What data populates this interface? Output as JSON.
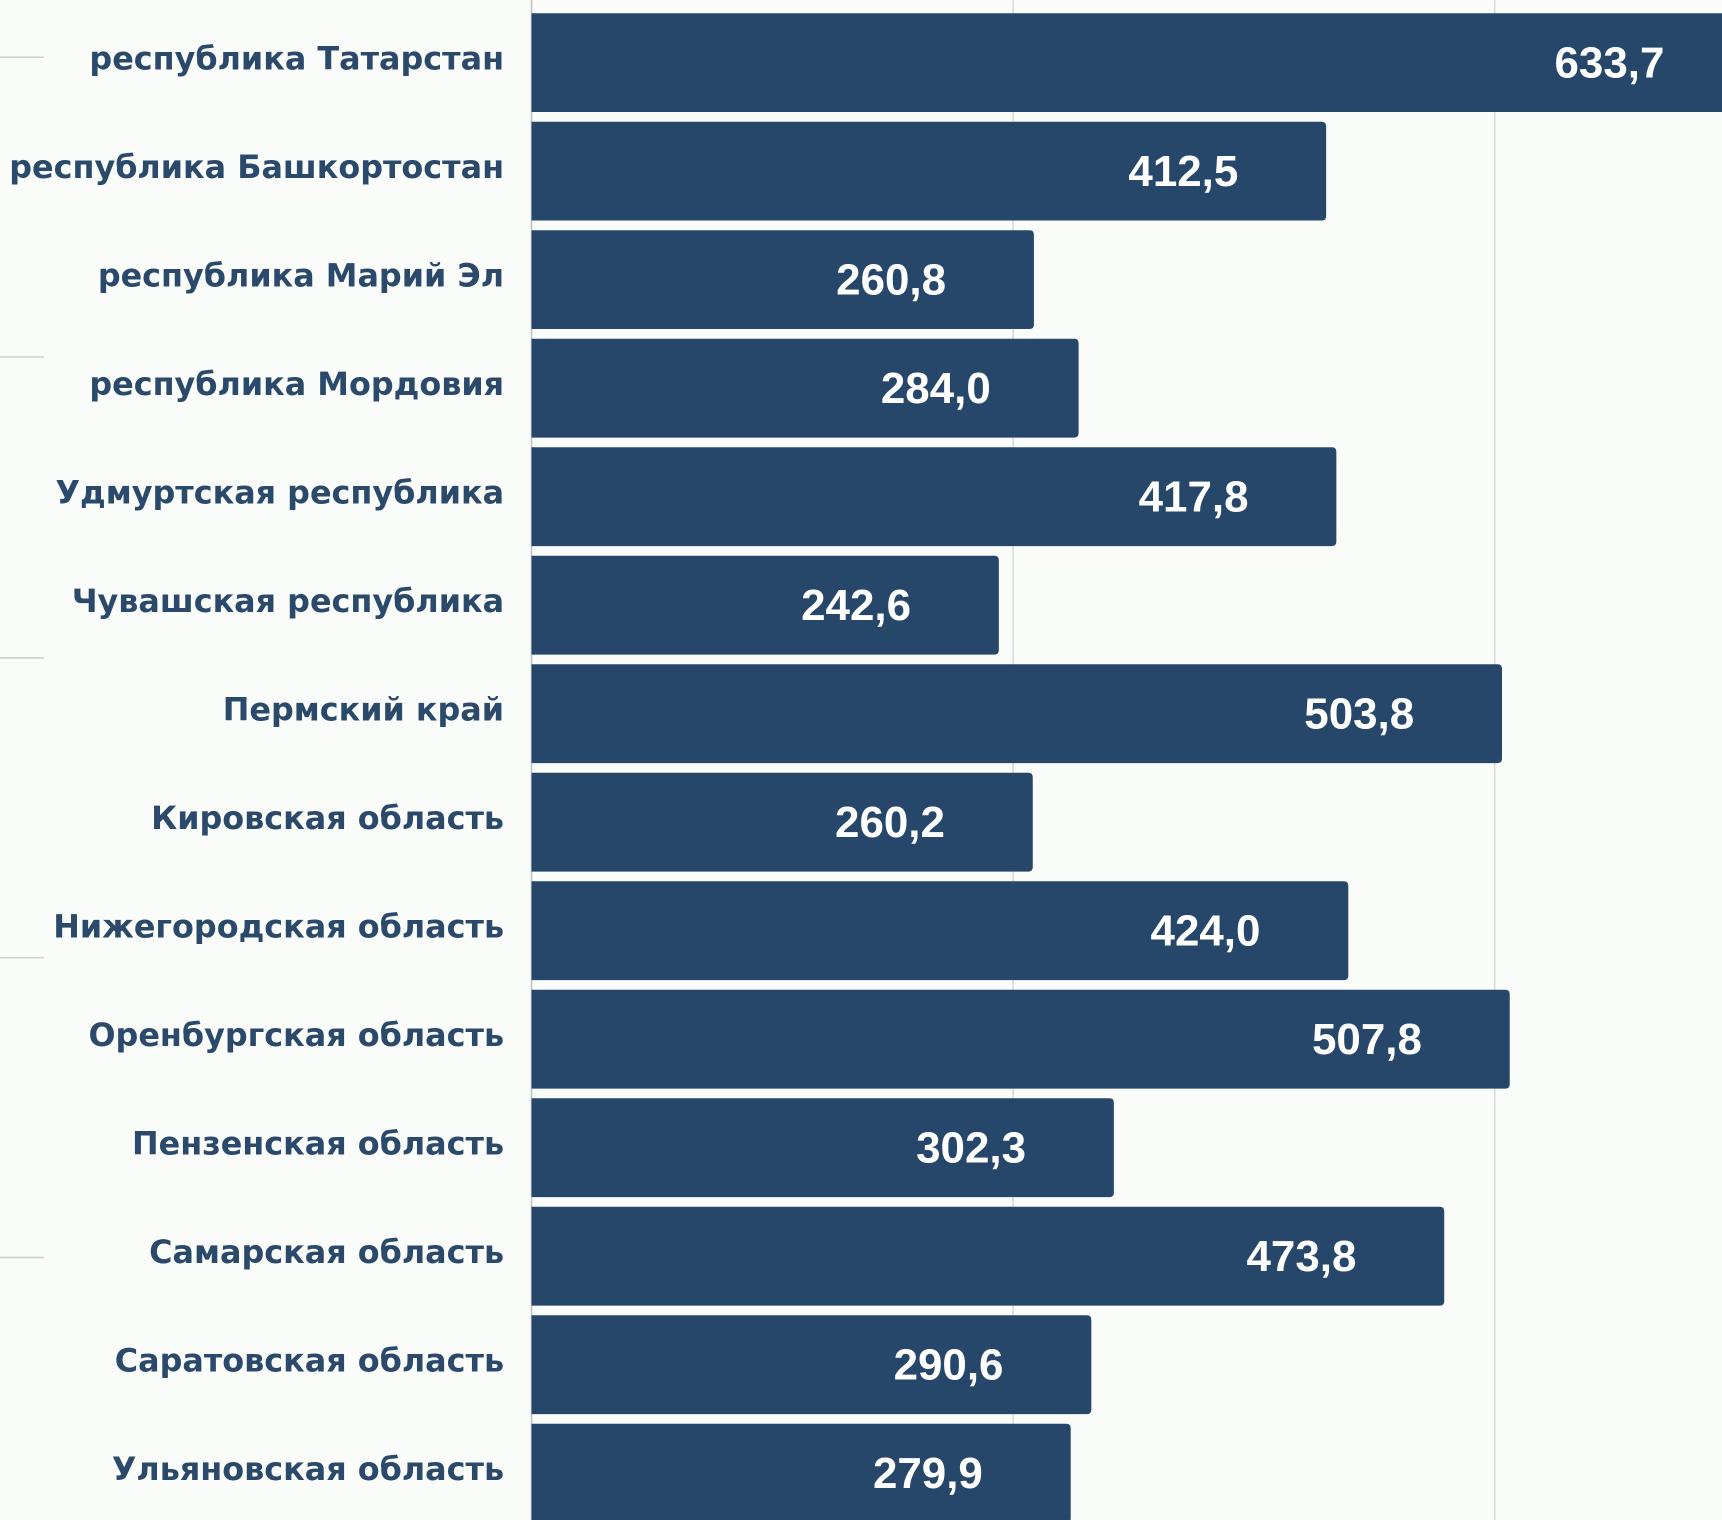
{
  "chart_data": {
    "type": "hbar",
    "categories": [
      "республика Татарстан",
      "республика Башкортостан",
      "республика Марий Эл",
      "республика Мордовия",
      "Удмуртская республика",
      "Чувашская республика",
      "Пермский край",
      "Кировская область",
      "Нижегородская область",
      "Оренбургская область",
      "Пензенская область",
      "Самарская область",
      "Саратовская область",
      "Ульяновская область"
    ],
    "values": [
      633.7,
      412.5,
      260.8,
      284.0,
      417.8,
      242.6,
      503.8,
      260.2,
      424.0,
      507.8,
      302.3,
      473.8,
      290.6,
      279.9
    ],
    "value_labels": [
      "633,7",
      "412,5",
      "260,8",
      "284,0",
      "417,8",
      "242,6",
      "503,8",
      "260,2",
      "424,0",
      "507,8",
      "302,3",
      "473,8",
      "290,6",
      "279,9"
    ],
    "color": "#27476a",
    "xlim": [
      0,
      618
    ],
    "xticks": [
      0,
      250,
      500
    ],
    "grid": true
  }
}
